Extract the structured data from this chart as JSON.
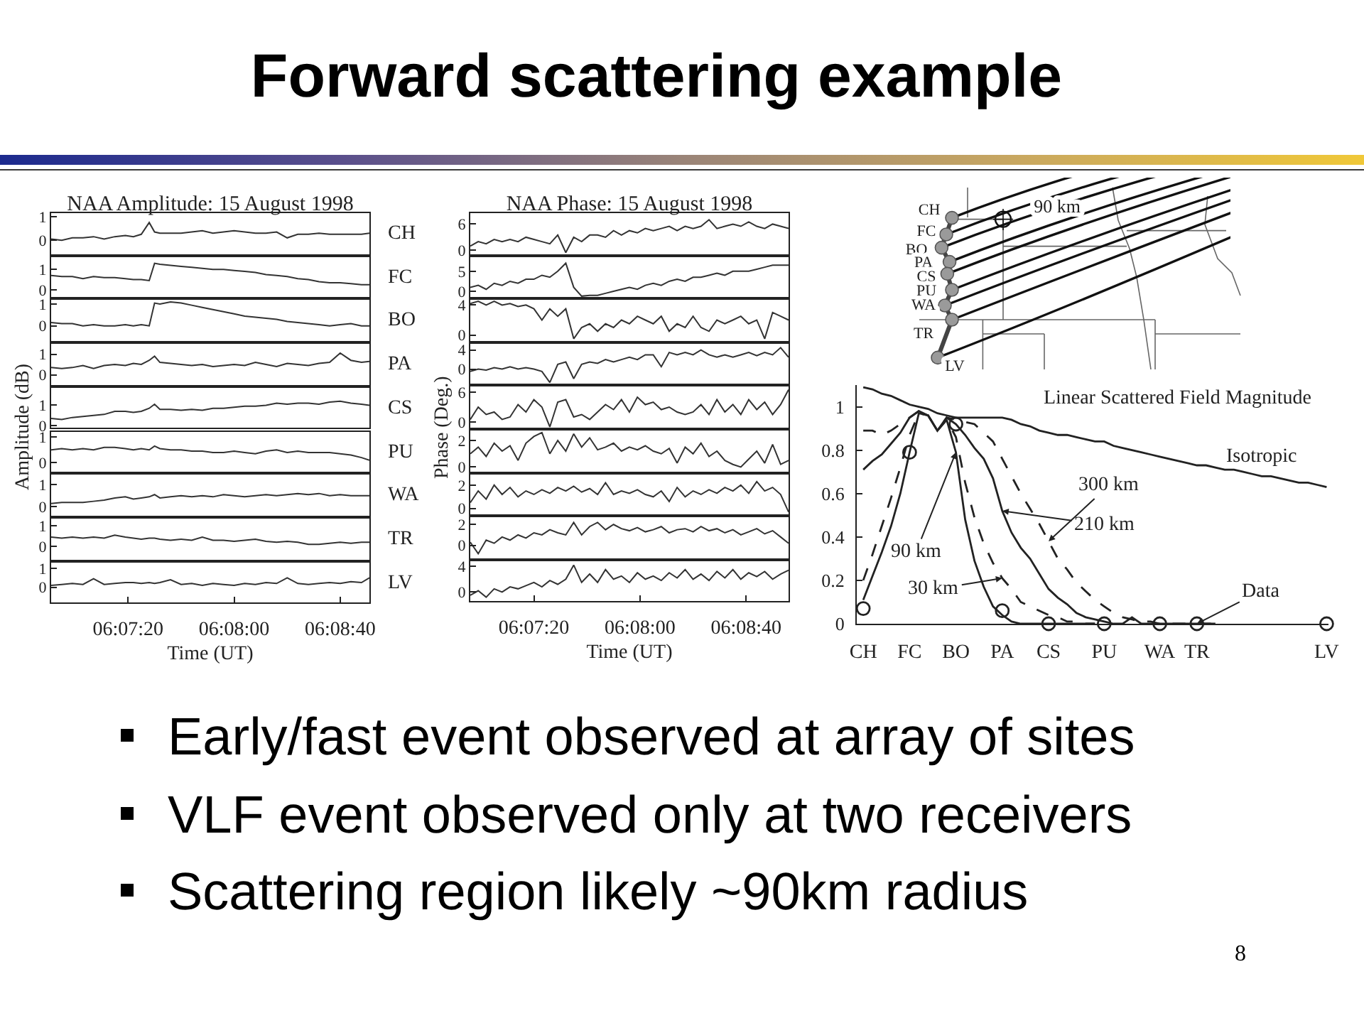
{
  "chart_data": [
    {
      "type": "other",
      "title": "Forward scattering example",
      "annotations": [
        "Early/fast event observed at array of sites",
        "VLF event observed only at two receivers",
        "Scattering region likely ~90km radius",
        "8"
      ]
    },
    {
      "type": "line",
      "title": "NAA Amplitude: 15 August 1998",
      "x": [
        6.11417,
        6.11528,
        6.11639,
        6.1175,
        6.11861,
        6.11972,
        6.12083,
        6.12194,
        6.12278,
        6.12361,
        6.12444,
        6.125,
        6.12556,
        6.12667,
        6.12778,
        6.12889,
        6.13,
        6.13111,
        6.13222,
        6.13333,
        6.13444,
        6.13556,
        6.13667,
        6.13778,
        6.13889,
        6.14,
        6.14111,
        6.14222,
        6.14333,
        6.14444,
        6.14556,
        6.14667,
        6.1475
      ],
      "xlim": [
        6.11417,
        6.1475
      ],
      "ylim": [
        -0.6,
        1.15
      ],
      "yticks": [
        0,
        1
      ],
      "tick_labels": "y",
      "series": [
        {
          "name": "CH",
          "color": "#333333",
          "values": [
            0.05,
            0.0,
            0.1,
            0.1,
            0.15,
            0.05,
            0.15,
            0.2,
            0.15,
            0.25,
            0.75,
            0.35,
            0.3,
            0.3,
            0.3,
            0.35,
            0.4,
            0.3,
            0.35,
            0.4,
            0.35,
            0.3,
            0.3,
            0.35,
            0.1,
            0.25,
            0.25,
            0.3,
            0.25,
            0.25,
            0.25,
            0.25,
            0.3
          ]
        }
      ]
    },
    {
      "type": "line",
      "x": [
        6.11417,
        6.11528,
        6.11639,
        6.1175,
        6.11861,
        6.11972,
        6.12083,
        6.12194,
        6.12278,
        6.12361,
        6.12444,
        6.125,
        6.12556,
        6.12667,
        6.12778,
        6.12889,
        6.13,
        6.13111,
        6.13222,
        6.13333,
        6.13444,
        6.13556,
        6.13667,
        6.13778,
        6.13889,
        6.14,
        6.14111,
        6.14222,
        6.14333,
        6.14444,
        6.14556,
        6.14667,
        6.1475
      ],
      "xlim": [
        6.11417,
        6.1475
      ],
      "ylim": [
        -0.35,
        1.6
      ],
      "yticks": [
        0,
        1
      ],
      "tick_labels": "y",
      "series": [
        {
          "name": "FC",
          "color": "#333333",
          "values": [
            0.7,
            0.65,
            0.65,
            0.55,
            0.65,
            0.6,
            0.6,
            0.55,
            0.5,
            0.5,
            0.45,
            1.3,
            1.25,
            1.2,
            1.15,
            1.1,
            1.05,
            1.0,
            1.0,
            0.95,
            0.9,
            0.85,
            0.75,
            0.7,
            0.65,
            0.55,
            0.5,
            0.4,
            0.35,
            0.35,
            0.3,
            0.25,
            0.25
          ]
        }
      ]
    },
    {
      "type": "line",
      "x": [
        6.11417,
        6.11528,
        6.11639,
        6.1175,
        6.11861,
        6.11972,
        6.12083,
        6.12194,
        6.12278,
        6.12361,
        6.12444,
        6.125,
        6.12556,
        6.12667,
        6.12778,
        6.12889,
        6.13,
        6.13111,
        6.13222,
        6.13333,
        6.13444,
        6.13556,
        6.13667,
        6.13778,
        6.13889,
        6.14,
        6.14111,
        6.14222,
        6.14333,
        6.14444,
        6.14556,
        6.14667,
        6.1475
      ],
      "xlim": [
        6.11417,
        6.1475
      ],
      "ylim": [
        -0.7,
        1.2
      ],
      "yticks": [
        0,
        1
      ],
      "tick_labels": "y",
      "series": [
        {
          "name": "BO",
          "color": "#333333",
          "values": [
            0.15,
            0.1,
            0.1,
            0.0,
            0.05,
            0.0,
            0.0,
            0.05,
            0.0,
            0.05,
            0.0,
            1.05,
            1.0,
            1.1,
            1.05,
            0.95,
            0.85,
            0.75,
            0.65,
            0.55,
            0.45,
            0.4,
            0.35,
            0.3,
            0.2,
            0.15,
            0.1,
            0.05,
            0.0,
            0.05,
            0.1,
            0.0,
            0.0
          ]
        }
      ]
    },
    {
      "type": "line",
      "x": [
        6.11417,
        6.11528,
        6.11639,
        6.1175,
        6.11861,
        6.11972,
        6.12083,
        6.12194,
        6.12278,
        6.12361,
        6.12444,
        6.125,
        6.12556,
        6.12667,
        6.12778,
        6.12889,
        6.13,
        6.13111,
        6.13222,
        6.13333,
        6.13444,
        6.13556,
        6.13667,
        6.13778,
        6.13889,
        6.14,
        6.14111,
        6.14222,
        6.14333,
        6.14444,
        6.14556,
        6.14667,
        6.1475
      ],
      "xlim": [
        6.11417,
        6.1475
      ],
      "ylim": [
        -0.5,
        1.5
      ],
      "yticks": [
        0,
        1
      ],
      "tick_labels": "y",
      "series": [
        {
          "name": "PA",
          "color": "#333333",
          "values": [
            0.35,
            0.3,
            0.35,
            0.45,
            0.3,
            0.45,
            0.5,
            0.45,
            0.55,
            0.5,
            0.7,
            0.9,
            0.6,
            0.55,
            0.5,
            0.45,
            0.5,
            0.4,
            0.45,
            0.5,
            0.45,
            0.6,
            0.5,
            0.4,
            0.55,
            0.5,
            0.45,
            0.55,
            0.6,
            1.05,
            0.7,
            0.6,
            0.65
          ]
        }
      ]
    },
    {
      "type": "line",
      "ylabel": "Amplitude (dB)",
      "x": [
        6.11417,
        6.11528,
        6.11639,
        6.1175,
        6.11861,
        6.11972,
        6.12083,
        6.12194,
        6.12278,
        6.12361,
        6.12444,
        6.125,
        6.12556,
        6.12667,
        6.12778,
        6.12889,
        6.13,
        6.13111,
        6.13222,
        6.13333,
        6.13444,
        6.13556,
        6.13667,
        6.13778,
        6.13889,
        6.14,
        6.14111,
        6.14222,
        6.14333,
        6.14444,
        6.14556,
        6.14667,
        6.1475
      ],
      "xlim": [
        6.11417,
        6.1475
      ],
      "ylim": [
        -0.1,
        1.85
      ],
      "yticks": [
        0,
        1
      ],
      "tick_labels": "y",
      "series": [
        {
          "name": "CS",
          "color": "#333333",
          "values": [
            0.35,
            0.3,
            0.4,
            0.45,
            0.5,
            0.55,
            0.7,
            0.7,
            0.65,
            0.7,
            0.85,
            1.05,
            0.8,
            0.8,
            0.75,
            0.8,
            0.75,
            0.85,
            0.85,
            0.9,
            0.95,
            0.95,
            1.0,
            1.1,
            1.05,
            1.1,
            1.1,
            1.05,
            1.15,
            1.2,
            1.1,
            1.05,
            1.0
          ]
        }
      ]
    },
    {
      "type": "line",
      "x": [
        6.11417,
        6.11528,
        6.11639,
        6.1175,
        6.11861,
        6.11972,
        6.12083,
        6.12194,
        6.12278,
        6.12361,
        6.12444,
        6.125,
        6.12556,
        6.12667,
        6.12778,
        6.12889,
        6.13,
        6.13111,
        6.13222,
        6.13333,
        6.13444,
        6.13556,
        6.13667,
        6.13778,
        6.13889,
        6.14,
        6.14111,
        6.14222,
        6.14333,
        6.14444,
        6.14556,
        6.14667,
        6.1475
      ],
      "xlim": [
        6.11417,
        6.1475
      ],
      "ylim": [
        -0.35,
        1.2
      ],
      "yticks": [
        0,
        1
      ],
      "tick_labels": "y",
      "series": [
        {
          "name": "PU",
          "color": "#333333",
          "values": [
            0.5,
            0.55,
            0.5,
            0.55,
            0.5,
            0.6,
            0.6,
            0.55,
            0.5,
            0.55,
            0.5,
            0.65,
            0.55,
            0.5,
            0.5,
            0.45,
            0.45,
            0.4,
            0.4,
            0.45,
            0.4,
            0.35,
            0.45,
            0.5,
            0.4,
            0.45,
            0.4,
            0.4,
            0.4,
            0.35,
            0.3,
            0.2,
            0.1
          ]
        }
      ]
    },
    {
      "type": "line",
      "x": [
        6.11417,
        6.11528,
        6.11639,
        6.1175,
        6.11861,
        6.11972,
        6.12083,
        6.12194,
        6.12278,
        6.12361,
        6.12444,
        6.125,
        6.12556,
        6.12667,
        6.12778,
        6.12889,
        6.13,
        6.13111,
        6.13222,
        6.13333,
        6.13444,
        6.13556,
        6.13667,
        6.13778,
        6.13889,
        6.14,
        6.14111,
        6.14222,
        6.14333,
        6.14444,
        6.14556,
        6.14667,
        6.1475
      ],
      "xlim": [
        6.11417,
        6.1475
      ],
      "ylim": [
        -0.4,
        1.45
      ],
      "yticks": [
        0,
        1
      ],
      "tick_labels": "y",
      "series": [
        {
          "name": "WA",
          "color": "#333333",
          "values": [
            0.15,
            0.2,
            0.2,
            0.2,
            0.25,
            0.3,
            0.4,
            0.45,
            0.35,
            0.4,
            0.45,
            0.55,
            0.4,
            0.45,
            0.5,
            0.45,
            0.5,
            0.45,
            0.55,
            0.5,
            0.45,
            0.5,
            0.55,
            0.5,
            0.55,
            0.6,
            0.55,
            0.6,
            0.5,
            0.55,
            0.5,
            0.5,
            0.5
          ]
        }
      ]
    },
    {
      "type": "line",
      "x": [
        6.11417,
        6.11528,
        6.11639,
        6.1175,
        6.11861,
        6.11972,
        6.12083,
        6.12194,
        6.12278,
        6.12361,
        6.12444,
        6.125,
        6.12556,
        6.12667,
        6.12778,
        6.12889,
        6.13,
        6.13111,
        6.13222,
        6.13333,
        6.13444,
        6.13556,
        6.13667,
        6.13778,
        6.13889,
        6.14,
        6.14111,
        6.14222,
        6.14333,
        6.14444,
        6.14556,
        6.14667,
        6.1475
      ],
      "xlim": [
        6.11417,
        6.1475
      ],
      "ylim": [
        -0.65,
        1.35
      ],
      "yticks": [
        0,
        1
      ],
      "tick_labels": "y",
      "series": [
        {
          "name": "TR",
          "color": "#333333",
          "values": [
            0.45,
            0.4,
            0.45,
            0.4,
            0.45,
            0.4,
            0.55,
            0.45,
            0.4,
            0.35,
            0.4,
            0.4,
            0.35,
            0.3,
            0.35,
            0.3,
            0.45,
            0.3,
            0.3,
            0.25,
            0.3,
            0.35,
            0.25,
            0.2,
            0.25,
            0.2,
            0.1,
            0.1,
            0.15,
            0.2,
            0.15,
            0.2,
            0.2
          ]
        }
      ]
    },
    {
      "type": "line",
      "xlabel": "Time (UT)",
      "x": [
        6.11417,
        6.11528,
        6.11639,
        6.1175,
        6.11861,
        6.11972,
        6.12083,
        6.12194,
        6.12278,
        6.12361,
        6.12444,
        6.125,
        6.12556,
        6.12667,
        6.12778,
        6.12889,
        6.13,
        6.13111,
        6.13222,
        6.13333,
        6.13444,
        6.13556,
        6.13667,
        6.13778,
        6.13889,
        6.14,
        6.14111,
        6.14222,
        6.14333,
        6.14444,
        6.14556,
        6.14667,
        6.1475
      ],
      "xlim": [
        6.11417,
        6.1475
      ],
      "xticks": [
        {
          "value": 6.12222,
          "label": "06:07:20"
        },
        {
          "value": 6.13333,
          "label": "06:08:00"
        },
        {
          "value": 6.14444,
          "label": "06:08:40"
        }
      ],
      "ylim": [
        -0.8,
        1.3
      ],
      "yticks": [
        0,
        1
      ],
      "series": [
        {
          "name": "LV",
          "color": "#333333",
          "values": [
            0.1,
            0.15,
            0.2,
            0.15,
            0.45,
            0.15,
            0.2,
            0.25,
            0.25,
            0.2,
            0.25,
            0.2,
            0.25,
            0.4,
            0.15,
            0.2,
            0.1,
            0.2,
            0.15,
            0.1,
            0.2,
            0.15,
            0.25,
            0.2,
            0.5,
            0.2,
            0.15,
            0.2,
            0.25,
            0.2,
            0.3,
            0.25,
            0.5
          ]
        }
      ]
    },
    {
      "type": "line",
      "title": "NAA Phase: 15 August 1998",
      "x": [
        6.11556,
        6.11639,
        6.11722,
        6.11806,
        6.11889,
        6.11972,
        6.12056,
        6.12139,
        6.12222,
        6.12306,
        6.12389,
        6.12472,
        6.12556,
        6.12639,
        6.12722,
        6.12806,
        6.12889,
        6.12972,
        6.13056,
        6.13139,
        6.13222,
        6.13306,
        6.13389,
        6.13472,
        6.13556,
        6.13639,
        6.13722,
        6.13806,
        6.13889,
        6.13972,
        6.14056,
        6.14139,
        6.14222,
        6.14306,
        6.14389,
        6.14472,
        6.14556,
        6.14639,
        6.14722,
        6.14806,
        6.14889
      ],
      "xlim": [
        6.11556,
        6.14889
      ],
      "ylim": [
        -0.9,
        8.5
      ],
      "yticks": [
        0,
        6
      ],
      "tick_labels": "y",
      "series": [
        {
          "color": "#333333",
          "values": [
            1.0,
            2.0,
            1.5,
            2.5,
            2.0,
            2.5,
            2.0,
            3.0,
            2.5,
            2.0,
            1.5,
            3.5,
            -0.5,
            3.0,
            2.0,
            3.5,
            3.5,
            3.0,
            4.5,
            3.5,
            4.5,
            4.0,
            5.0,
            4.5,
            5.0,
            5.5,
            4.5,
            5.5,
            5.0,
            5.5,
            7.0,
            5.0,
            5.5,
            6.0,
            5.5,
            6.5,
            5.5,
            5.0,
            6.0,
            5.5,
            5.0
          ]
        }
      ]
    },
    {
      "type": "line",
      "x": [
        6.11556,
        6.11639,
        6.11722,
        6.11806,
        6.11889,
        6.11972,
        6.12056,
        6.12139,
        6.12222,
        6.12306,
        6.12389,
        6.12472,
        6.12556,
        6.12639,
        6.12722,
        6.12806,
        6.12889,
        6.12972,
        6.13056,
        6.13139,
        6.13222,
        6.13306,
        6.13389,
        6.13472,
        6.13556,
        6.13639,
        6.13722,
        6.13806,
        6.13889,
        6.13972,
        6.14056,
        6.14139,
        6.14222,
        6.14306,
        6.14389,
        6.14472,
        6.14556,
        6.14639,
        6.14722,
        6.14806,
        6.14889
      ],
      "xlim": [
        6.11556,
        6.14889
      ],
      "ylim": [
        -1.4,
        8.5
      ],
      "yticks": [
        0,
        5
      ],
      "tick_labels": "y",
      "series": [
        {
          "color": "#333333",
          "values": [
            1.0,
            1.5,
            0.5,
            2.0,
            1.5,
            2.5,
            2.0,
            3.0,
            3.0,
            4.0,
            3.5,
            5.0,
            7.0,
            1.0,
            -1.2,
            -1.0,
            -1.0,
            -0.5,
            0.0,
            0.5,
            1.0,
            0.5,
            1.5,
            2.0,
            1.5,
            2.5,
            3.0,
            2.5,
            3.5,
            3.5,
            4.0,
            4.5,
            4.0,
            5.0,
            5.0,
            5.0,
            5.5,
            6.0,
            6.5,
            6.5,
            6.5
          ]
        }
      ]
    },
    {
      "type": "line",
      "x": [
        6.11556,
        6.11639,
        6.11722,
        6.11806,
        6.11889,
        6.11972,
        6.12056,
        6.12139,
        6.12222,
        6.12306,
        6.12389,
        6.12472,
        6.12556,
        6.12639,
        6.12722,
        6.12806,
        6.12889,
        6.12972,
        6.13056,
        6.13139,
        6.13222,
        6.13306,
        6.13389,
        6.13472,
        6.13556,
        6.13639,
        6.13722,
        6.13806,
        6.13889,
        6.13972,
        6.14056,
        6.14139,
        6.14222,
        6.14306,
        6.14389,
        6.14472,
        6.14556,
        6.14639,
        6.14722,
        6.14806,
        6.14889
      ],
      "xlim": [
        6.11556,
        6.14889
      ],
      "ylim": [
        -0.8,
        4.7
      ],
      "yticks": [
        0,
        4
      ],
      "tick_labels": "y",
      "series": [
        {
          "color": "#333333",
          "values": [
            4.2,
            4.5,
            4.0,
            4.5,
            4.0,
            4.2,
            3.8,
            4.0,
            3.5,
            2.0,
            3.5,
            2.5,
            3.5,
            -0.5,
            1.0,
            1.5,
            0.5,
            1.5,
            1.0,
            2.0,
            1.5,
            2.5,
            2.0,
            1.5,
            2.5,
            0.5,
            1.5,
            1.0,
            2.5,
            1.0,
            0.5,
            2.0,
            1.5,
            2.0,
            2.5,
            1.5,
            2.0,
            -0.5,
            3.0,
            2.5,
            2.0
          ]
        }
      ]
    },
    {
      "type": "line",
      "x": [
        6.11556,
        6.11639,
        6.11722,
        6.11806,
        6.11889,
        6.11972,
        6.12056,
        6.12139,
        6.12222,
        6.12306,
        6.12389,
        6.12472,
        6.12556,
        6.12639,
        6.12722,
        6.12806,
        6.12889,
        6.12972,
        6.13056,
        6.13139,
        6.13222,
        6.13306,
        6.13389,
        6.13472,
        6.13556,
        6.13639,
        6.13722,
        6.13806,
        6.13889,
        6.13972,
        6.14056,
        6.14139,
        6.14222,
        6.14306,
        6.14389,
        6.14472,
        6.14556,
        6.14639,
        6.14722,
        6.14806,
        6.14889
      ],
      "xlim": [
        6.11556,
        6.14889
      ],
      "ylim": [
        -3.05,
        5.3
      ],
      "yticks": [
        0,
        4
      ],
      "tick_labels": "y",
      "series": [
        {
          "color": "#333333",
          "values": [
            -0.5,
            0.0,
            -0.2,
            0.3,
            0.0,
            0.5,
            0.0,
            0.3,
            0.0,
            -0.5,
            -2.8,
            1.0,
            1.5,
            -2.0,
            1.0,
            1.5,
            1.2,
            2.0,
            1.5,
            2.0,
            2.5,
            2.0,
            3.0,
            3.0,
            0.5,
            3.5,
            3.0,
            3.5,
            3.0,
            4.0,
            3.0,
            2.5,
            3.0,
            2.5,
            3.0,
            3.5,
            2.8,
            3.5,
            3.0,
            4.5,
            2.5
          ]
        }
      ]
    },
    {
      "type": "line",
      "ylabel": "Phase (Deg.)",
      "x": [
        6.11556,
        6.11639,
        6.11722,
        6.11806,
        6.11889,
        6.11972,
        6.12056,
        6.12139,
        6.12222,
        6.12306,
        6.12389,
        6.12472,
        6.12556,
        6.12639,
        6.12722,
        6.12806,
        6.12889,
        6.12972,
        6.13056,
        6.13139,
        6.13222,
        6.13306,
        6.13389,
        6.13472,
        6.13556,
        6.13639,
        6.13722,
        6.13806,
        6.13889,
        6.13972,
        6.14056,
        6.14139,
        6.14222,
        6.14306,
        6.14389,
        6.14472,
        6.14556,
        6.14639,
        6.14722,
        6.14806,
        6.14889
      ],
      "xlim": [
        6.11556,
        6.14889
      ],
      "ylim": [
        -1.15,
        7.15
      ],
      "yticks": [
        0,
        6
      ],
      "tick_labels": "y",
      "series": [
        {
          "color": "#333333",
          "values": [
            0.5,
            3.0,
            1.5,
            2.0,
            0.5,
            1.0,
            3.5,
            2.0,
            4.5,
            3.0,
            -1.0,
            4.0,
            4.5,
            1.0,
            1.5,
            0.5,
            2.0,
            3.5,
            2.5,
            4.5,
            2.0,
            5.0,
            3.5,
            4.0,
            2.5,
            3.0,
            2.0,
            1.5,
            2.0,
            3.5,
            1.5,
            4.5,
            2.0,
            3.5,
            1.5,
            4.5,
            2.5,
            4.0,
            1.5,
            3.5,
            6.5
          ]
        }
      ]
    },
    {
      "type": "line",
      "x": [
        6.11556,
        6.11639,
        6.11722,
        6.11806,
        6.11889,
        6.11972,
        6.12056,
        6.12139,
        6.12222,
        6.12306,
        6.12389,
        6.12472,
        6.12556,
        6.12639,
        6.12722,
        6.12806,
        6.12889,
        6.12972,
        6.13056,
        6.13139,
        6.13222,
        6.13306,
        6.13389,
        6.13472,
        6.13556,
        6.13639,
        6.13722,
        6.13806,
        6.13889,
        6.13972,
        6.14056,
        6.14139,
        6.14222,
        6.14306,
        6.14389,
        6.14472,
        6.14556,
        6.14639,
        6.14722,
        6.14806,
        6.14889
      ],
      "xlim": [
        6.11556,
        6.14889
      ],
      "ylim": [
        -0.35,
        2.75
      ],
      "yticks": [
        0,
        2
      ],
      "tick_labels": "y",
      "series": [
        {
          "color": "#333333",
          "values": [
            1.0,
            1.5,
            0.8,
            1.8,
            1.2,
            1.6,
            0.5,
            1.8,
            2.3,
            2.6,
            1.0,
            2.0,
            1.2,
            2.5,
            1.5,
            2.2,
            1.3,
            1.5,
            1.8,
            1.2,
            1.5,
            1.3,
            1.6,
            1.2,
            1.0,
            1.4,
            0.3,
            1.5,
            1.0,
            1.8,
            0.8,
            1.2,
            0.5,
            0.2,
            0.0,
            0.6,
            1.2,
            0.3,
            1.7,
            0.2,
            0.5
          ]
        }
      ]
    },
    {
      "type": "line",
      "x": [
        6.11556,
        6.11639,
        6.11722,
        6.11806,
        6.11889,
        6.11972,
        6.12056,
        6.12139,
        6.12222,
        6.12306,
        6.12389,
        6.12472,
        6.12556,
        6.12639,
        6.12722,
        6.12806,
        6.12889,
        6.12972,
        6.13056,
        6.13139,
        6.13222,
        6.13306,
        6.13389,
        6.13472,
        6.13556,
        6.13639,
        6.13722,
        6.13806,
        6.13889,
        6.13972,
        6.14056,
        6.14139,
        6.14222,
        6.14306,
        6.14389,
        6.14472,
        6.14556,
        6.14639,
        6.14722,
        6.14806,
        6.14889
      ],
      "xlim": [
        6.11556,
        6.14889
      ],
      "ylim": [
        -0.5,
        2.9
      ],
      "yticks": [
        0,
        2
      ],
      "tick_labels": "y",
      "series": [
        {
          "color": "#333333",
          "values": [
            0.5,
            1.5,
            0.8,
            2.0,
            1.2,
            1.8,
            1.0,
            1.5,
            1.2,
            1.6,
            1.3,
            1.8,
            1.5,
            1.9,
            1.4,
            1.7,
            1.2,
            2.2,
            1.2,
            1.5,
            1.3,
            1.6,
            1.2,
            1.0,
            1.5,
            0.6,
            1.8,
            1.0,
            1.5,
            1.2,
            1.6,
            1.3,
            1.8,
            1.5,
            2.0,
            1.3,
            2.3,
            1.5,
            1.8,
            1.2,
            -0.3
          ]
        }
      ]
    },
    {
      "type": "line",
      "x": [
        6.11556,
        6.11639,
        6.11722,
        6.11806,
        6.11889,
        6.11972,
        6.12056,
        6.12139,
        6.12222,
        6.12306,
        6.12389,
        6.12472,
        6.12556,
        6.12639,
        6.12722,
        6.12806,
        6.12889,
        6.12972,
        6.13056,
        6.13139,
        6.13222,
        6.13306,
        6.13389,
        6.13472,
        6.13556,
        6.13639,
        6.13722,
        6.13806,
        6.13889,
        6.13972,
        6.14056,
        6.14139,
        6.14222,
        6.14306,
        6.14389,
        6.14472,
        6.14556,
        6.14639,
        6.14722,
        6.14806,
        6.14889
      ],
      "xlim": [
        6.11556,
        6.14889
      ],
      "ylim": [
        -1.25,
        2.7
      ],
      "yticks": [
        0,
        2
      ],
      "tick_labels": "y",
      "series": [
        {
          "color": "#333333",
          "values": [
            0.3,
            -0.8,
            0.5,
            0.2,
            0.8,
            0.5,
            1.0,
            0.7,
            1.2,
            1.0,
            1.5,
            1.2,
            1.0,
            2.2,
            1.0,
            1.8,
            2.2,
            1.5,
            2.0,
            1.6,
            1.4,
            1.7,
            1.3,
            1.5,
            1.8,
            1.2,
            1.5,
            1.6,
            1.3,
            1.8,
            1.4,
            1.6,
            1.2,
            1.5,
            1.0,
            1.3,
            1.6,
            1.1,
            1.4,
            0.8,
            0.2
          ]
        }
      ]
    },
    {
      "type": "line",
      "xlabel": "Time (UT)",
      "x": [
        6.11556,
        6.11639,
        6.11722,
        6.11806,
        6.11889,
        6.11972,
        6.12056,
        6.12139,
        6.12222,
        6.12306,
        6.12389,
        6.12472,
        6.12556,
        6.12639,
        6.12722,
        6.12806,
        6.12889,
        6.12972,
        6.13056,
        6.13139,
        6.13222,
        6.13306,
        6.13389,
        6.13472,
        6.13556,
        6.13639,
        6.13722,
        6.13806,
        6.13889,
        6.13972,
        6.14056,
        6.14139,
        6.14222,
        6.14306,
        6.14389,
        6.14472,
        6.14556,
        6.14639,
        6.14722,
        6.14806,
        6.14889
      ],
      "xlim": [
        6.11556,
        6.14889
      ],
      "xticks": [
        {
          "value": 6.12222,
          "label": "06:07:20"
        },
        {
          "value": 6.13333,
          "label": "06:08:00"
        },
        {
          "value": 6.14444,
          "label": "06:08:40"
        }
      ],
      "ylim": [
        -1.4,
        4.8
      ],
      "yticks": [
        0,
        4
      ],
      "series": [
        {
          "color": "#333333",
          "values": [
            -0.5,
            0.2,
            -0.8,
            0.5,
            0.0,
            0.8,
            0.5,
            1.0,
            1.5,
            0.8,
            1.8,
            1.2,
            2.0,
            4.2,
            1.5,
            2.8,
            1.5,
            3.5,
            2.0,
            2.5,
            1.5,
            3.0,
            2.0,
            2.5,
            1.8,
            3.0,
            2.2,
            3.5,
            2.0,
            2.8,
            1.8,
            3.2,
            2.2,
            3.5,
            2.0,
            3.0,
            2.4,
            3.2,
            2.0,
            2.8,
            3.4
          ]
        }
      ]
    },
    {
      "type": "other",
      "annotations": [
        "CH",
        "FC",
        "BO",
        "PA",
        "CS",
        "PU",
        "WA",
        "TR",
        "LV",
        "90 km"
      ]
    },
    {
      "type": "line",
      "title": "Linear Scattered Field Magnitude",
      "categories": [
        "CH",
        null,
        null,
        null,
        null,
        "FC",
        null,
        null,
        null,
        null,
        "BO",
        null,
        null,
        null,
        null,
        "PA",
        null,
        null,
        null,
        null,
        "CS",
        null,
        null,
        null,
        null,
        null,
        "PU",
        null,
        null,
        null,
        null,
        null,
        "WA",
        null,
        null,
        null,
        "TR",
        null,
        null,
        null,
        null,
        null,
        null,
        null,
        null,
        null,
        null,
        null,
        null,
        null,
        "LV"
      ],
      "ylim": [
        0,
        1.1
      ],
      "yticks": [
        0,
        0.2,
        0.4,
        0.6,
        0.8,
        1
      ],
      "series": [
        {
          "color": "#222222",
          "values": [
            1.09,
            1.08,
            1.06,
            1.05,
            1.03,
            1.01,
            1.0,
            0.99,
            0.97,
            0.96,
            0.95,
            0.95,
            0.95,
            0.95,
            0.95,
            0.95,
            0.94,
            0.92,
            0.91,
            0.89,
            0.88,
            0.87,
            0.87,
            0.86,
            0.85,
            0.84,
            0.84,
            0.82,
            0.81,
            0.8,
            0.79,
            0.78,
            0.77,
            0.76,
            0.75,
            0.74,
            0.73,
            0.73,
            0.72,
            0.71,
            0.71,
            0.7,
            0.69,
            0.68,
            0.68,
            0.67,
            0.66,
            0.65,
            0.65,
            0.64,
            0.63
          ]
        },
        {
          "color": "#222222",
          "line_style": "dashed",
          "values": [
            0.89,
            0.89,
            0.87,
            0.89,
            0.92,
            0.95,
            0.98,
            0.96,
            0.89,
            0.95,
            0.94,
            0.93,
            0.92,
            0.88,
            0.84,
            0.76,
            0.68,
            0.6,
            0.53,
            0.46,
            0.38,
            0.3,
            0.25,
            0.19,
            0.15,
            0.11,
            0.08,
            0.05,
            0.03,
            0.02,
            0.01,
            0.01,
            0,
            0,
            0,
            0,
            0,
            0,
            0,
            null,
            null,
            null,
            null,
            null,
            null,
            null,
            null,
            null,
            null,
            null,
            null
          ]
        },
        {
          "color": "#222222",
          "values": [
            0.71,
            0.75,
            0.78,
            0.83,
            0.88,
            0.95,
            0.98,
            0.96,
            0.89,
            0.95,
            0.92,
            0.87,
            0.81,
            0.76,
            0.67,
            0.52,
            0.42,
            0.35,
            0.3,
            0.23,
            0.16,
            0.12,
            0.09,
            0.05,
            0.03,
            0.02,
            0.01,
            0,
            0,
            0.03,
            0,
            0,
            0,
            0,
            0,
            0,
            0,
            0,
            0,
            null,
            null,
            null,
            null,
            null,
            null,
            null,
            null,
            null,
            null,
            null,
            null
          ]
        },
        {
          "color": "#222222",
          "values": [
            0.11,
            0.22,
            0.33,
            0.45,
            0.6,
            0.79,
            0.97,
            0.96,
            0.89,
            0.94,
            0.79,
            0.48,
            0.29,
            0.17,
            0.08,
            0.04,
            0.01,
            0,
            0,
            0,
            0,
            0,
            0,
            0,
            0,
            0,
            null,
            null,
            null,
            null,
            null,
            null,
            null,
            null,
            null,
            null,
            null,
            null,
            null,
            null,
            null,
            null,
            null,
            null,
            null,
            null,
            null,
            null,
            null,
            null,
            null
          ]
        },
        {
          "color": "#222222",
          "line_style": "dashed",
          "values": [
            0.2,
            0.32,
            0.45,
            0.58,
            0.72,
            0.87,
            0.97,
            0.96,
            0.89,
            0.94,
            0.86,
            0.65,
            0.49,
            0.37,
            0.28,
            0.21,
            0.16,
            0.1,
            0.08,
            0.06,
            0.04,
            0.03,
            0.01,
            0.01,
            0,
            0,
            null,
            null,
            null,
            null,
            null,
            null,
            null,
            null,
            null,
            null,
            null,
            null,
            null,
            null,
            null,
            null,
            null,
            null,
            null,
            null,
            null,
            null,
            null,
            null,
            null
          ]
        },
        {
          "type": "scatter",
          "marker": "circle",
          "color": "#222222",
          "values": [
            0.07,
            null,
            null,
            null,
            null,
            0.79,
            null,
            null,
            null,
            null,
            0.92,
            null,
            null,
            null,
            null,
            0.06,
            null,
            null,
            null,
            null,
            0,
            null,
            null,
            null,
            null,
            null,
            0,
            null,
            null,
            null,
            null,
            null,
            0,
            null,
            null,
            null,
            0,
            null,
            null,
            null,
            null,
            null,
            null,
            null,
            null,
            null,
            null,
            null,
            null,
            null,
            0
          ]
        }
      ],
      "annotations": [
        "Isotropic",
        {
          "text": "300 km",
          "x": "CS",
          "y": 0.38
        },
        {
          "text": "210 km",
          "x": "PA",
          "y": 0.52
        },
        {
          "text": "90 km",
          "x": "BO",
          "y": 0.79
        },
        {
          "text": "30 km",
          "x": "PA",
          "y": 0.21
        },
        {
          "text": "Data",
          "x": "TR",
          "y": 0
        }
      ]
    }
  ]
}
